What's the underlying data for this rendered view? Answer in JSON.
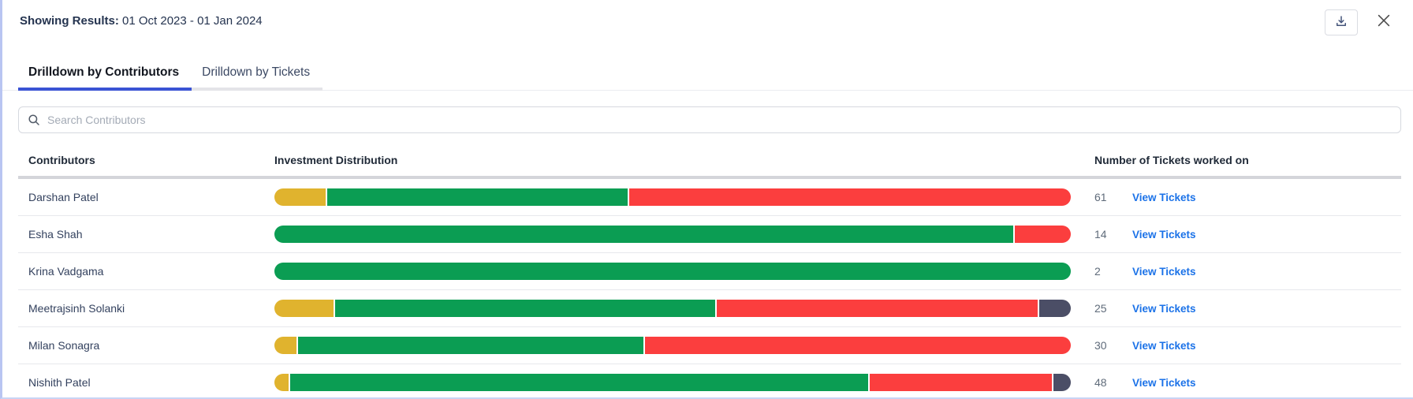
{
  "header": {
    "label": "Showing Results:",
    "date_range": "01 Oct 2023 - 01 Jan 2024"
  },
  "tabs": [
    {
      "label": "Drilldown by Contributors",
      "active": true
    },
    {
      "label": "Drilldown by Tickets",
      "active": false
    }
  ],
  "search": {
    "placeholder": "Search Contributors"
  },
  "table": {
    "columns": [
      "Contributors",
      "Investment Distribution",
      "Number of Tickets worked on"
    ],
    "view_tickets_label": "View Tickets",
    "rows": [
      {
        "name": "Darshan Patel",
        "tickets": "61",
        "segments": [
          {
            "color": "yellow",
            "pct": 6.5
          },
          {
            "color": "green",
            "pct": 37.8
          },
          {
            "color": "red",
            "pct": 55.7
          }
        ]
      },
      {
        "name": "Esha Shah",
        "tickets": "14",
        "segments": [
          {
            "color": "green",
            "pct": 93
          },
          {
            "color": "red",
            "pct": 7
          }
        ]
      },
      {
        "name": "Krina Vadgama",
        "tickets": "2",
        "segments": [
          {
            "color": "green",
            "pct": 100
          }
        ]
      },
      {
        "name": "Meetrajsinh Solanki",
        "tickets": "25",
        "segments": [
          {
            "color": "yellow",
            "pct": 7.5
          },
          {
            "color": "green",
            "pct": 48
          },
          {
            "color": "red",
            "pct": 40.5
          },
          {
            "color": "slate",
            "pct": 4
          }
        ]
      },
      {
        "name": "Milan Sonagra",
        "tickets": "30",
        "segments": [
          {
            "color": "yellow",
            "pct": 2.8
          },
          {
            "color": "green",
            "pct": 43.5
          },
          {
            "color": "red",
            "pct": 53.7
          }
        ]
      },
      {
        "name": "Nishith Patel",
        "tickets": "48",
        "segments": [
          {
            "color": "yellow",
            "pct": 1.8
          },
          {
            "color": "green",
            "pct": 73
          },
          {
            "color": "red",
            "pct": 23
          },
          {
            "color": "slate",
            "pct": 2.2
          }
        ]
      }
    ]
  },
  "colors": {
    "yellow": "#e0b32e",
    "green": "#0b9d53",
    "red": "#fb3e3e",
    "slate": "#4b4e66",
    "active_tab_underline": "#3a53d4",
    "link_blue": "#1b72e8",
    "left_edge": "#b9c5f2"
  },
  "icons": {
    "download": "download-icon",
    "close": "close-icon",
    "search": "search-icon"
  }
}
